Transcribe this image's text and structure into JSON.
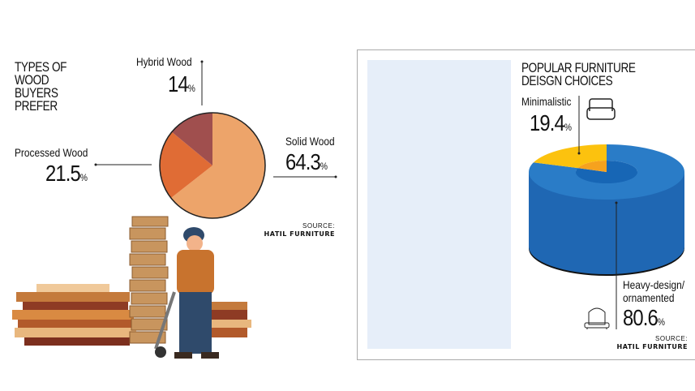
{
  "chart_data": [
    {
      "type": "pie",
      "title": "TYPES OF WOOD BUYERS PREFER",
      "slices": [
        {
          "label": "Solid Wood",
          "value": 64.3,
          "display": "64.3",
          "color": "#eda46a"
        },
        {
          "label": "Processed Wood",
          "value": 21.5,
          "display": "21.5",
          "color": "#e06c35"
        },
        {
          "label": "Hybrid Wood",
          "value": 14,
          "display": "14",
          "color": "#a04f4e"
        }
      ],
      "unit": "%",
      "source_label": "SOURCE:",
      "source": "HATIL FURNITURE"
    },
    {
      "type": "pie",
      "style": "3d-donut",
      "title": "POPULAR FURNITURE DEISGN CHOICES",
      "slices": [
        {
          "label": "Heavy-design/ ornamented",
          "value": 80.6,
          "display": "80.6",
          "color": "#2a7cc7",
          "side_color": "#1f67b3",
          "inner_color": "#1766b5"
        },
        {
          "label": "Minimalistic",
          "value": 19.4,
          "display": "19.4",
          "color": "#fcc20e",
          "inner_color": "#f6a21e"
        }
      ],
      "unit": "%",
      "icons": [
        "armchair-icon",
        "throne-chair-icon"
      ],
      "source_label": "SOURCE:",
      "source": "HATIL FURNITURE"
    }
  ]
}
